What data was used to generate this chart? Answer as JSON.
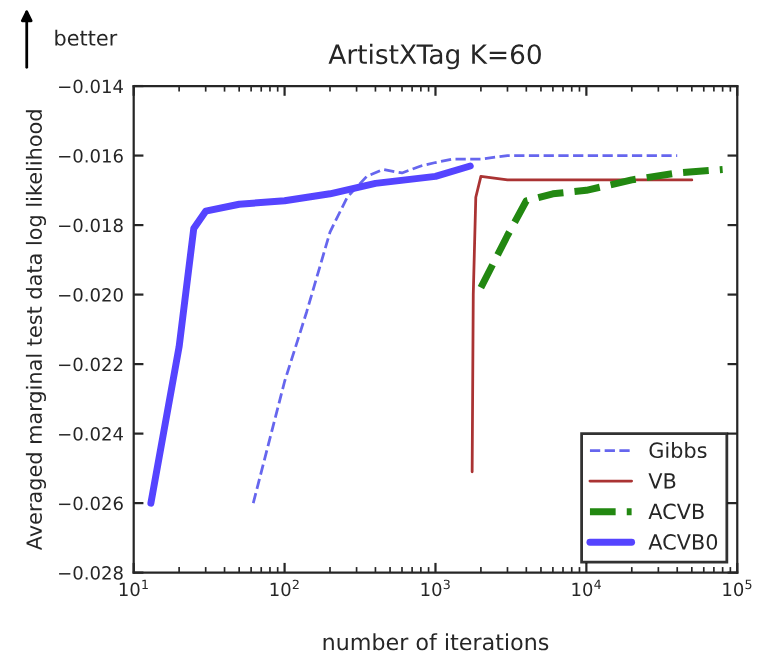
{
  "chart_data": {
    "type": "line",
    "title": "ArtistXTag K=60",
    "xlabel": "number of iterations",
    "ylabel": "Averaged marginal test data log likelihood",
    "annotations": [
      "better"
    ],
    "log": "x",
    "legend": "bottom right",
    "grid": false,
    "xlim": [
      10,
      100000
    ],
    "xticks": [
      {
        "value": 10,
        "label": "10$^{1}$"
      },
      {
        "value": 100,
        "label": "10$^{2}$"
      },
      {
        "value": 1000,
        "label": "10$^{3}$"
      },
      {
        "value": 10000,
        "label": "10$^{4}$"
      },
      {
        "value": 100000,
        "label": "10$^{5}$"
      }
    ],
    "ylim": [
      -0.028,
      -0.014
    ],
    "yticks": [
      {
        "value": -0.028,
        "label": "−0.028"
      },
      {
        "value": -0.026,
        "label": "−0.026"
      },
      {
        "value": -0.024,
        "label": "−0.024"
      },
      {
        "value": -0.022,
        "label": "−0.022"
      },
      {
        "value": -0.02,
        "label": "−0.020"
      },
      {
        "value": -0.018,
        "label": "−0.018"
      },
      {
        "value": -0.016,
        "label": "−0.016"
      },
      {
        "value": -0.014,
        "label": "−0.014"
      }
    ],
    "series": [
      {
        "name": "Gibbs",
        "color": "#6666ee",
        "line_style": "dashed",
        "x": [
          62,
          100,
          140,
          200,
          260,
          350,
          450,
          600,
          800,
          1000,
          1300,
          2000,
          3000,
          5000,
          10000,
          20000,
          40000
        ],
        "values": [
          -0.026,
          -0.0225,
          -0.0205,
          -0.0182,
          -0.0172,
          -0.0166,
          -0.0164,
          -0.0165,
          -0.0163,
          -0.0162,
          -0.0161,
          -0.0161,
          -0.016,
          -0.016,
          -0.016,
          -0.016,
          -0.016
        ]
      },
      {
        "name": "VB",
        "color": "#aa3333",
        "line_style": "solid",
        "x": [
          1750,
          1780,
          1850,
          2000,
          3000,
          10000,
          50000
        ],
        "values": [
          -0.0251,
          -0.02,
          -0.0172,
          -0.0166,
          -0.0167,
          -0.0167,
          -0.0167
        ]
      },
      {
        "name": "ACVB",
        "color": "#228811",
        "line_style": "dashed",
        "x": [
          2000,
          3000,
          4000,
          6000,
          10000,
          20000,
          40000,
          80000
        ],
        "values": [
          -0.0198,
          -0.0183,
          -0.0173,
          -0.0171,
          -0.017,
          -0.0167,
          -0.0165,
          -0.0164
        ]
      },
      {
        "name": "ACVB0",
        "color": "#5544ff",
        "line_style": "solid",
        "x": [
          13,
          20,
          25,
          30,
          50,
          100,
          200,
          400,
          1000,
          1700
        ],
        "values": [
          -0.026,
          -0.0215,
          -0.0181,
          -0.0176,
          -0.0174,
          -0.0173,
          -0.0171,
          -0.0168,
          -0.0166,
          -0.0163
        ]
      }
    ]
  }
}
